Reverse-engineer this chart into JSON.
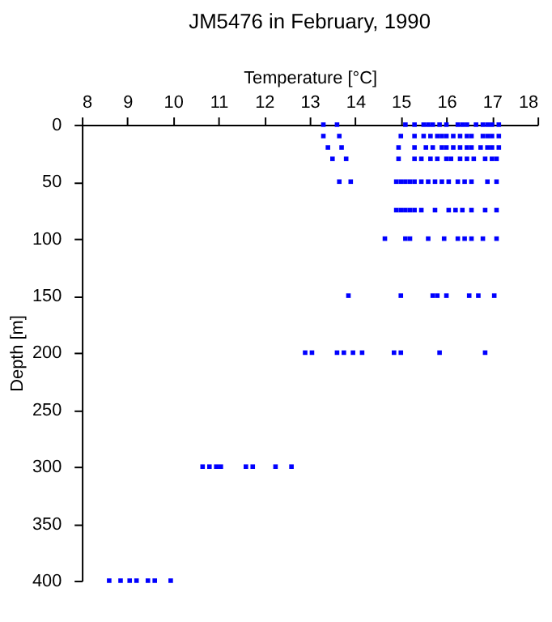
{
  "chart_data": {
    "type": "scatter",
    "title": "JM5476 in February, 1990",
    "xlabel": "Temperature [°C]",
    "ylabel": "Depth [m]",
    "xlim": [
      8,
      18
    ],
    "xticks": [
      8,
      9,
      10,
      11,
      12,
      13,
      14,
      15,
      16,
      17,
      18
    ],
    "ylim": [
      400,
      0
    ],
    "yticks": [
      0,
      50,
      100,
      150,
      200,
      250,
      300,
      350,
      400
    ],
    "grid": false,
    "marker": "square",
    "series": [
      {
        "color": "#0000ff",
        "x": [
          13.3,
          13.6,
          15.1,
          15.3,
          15.5,
          15.6,
          15.7,
          15.85,
          16.0,
          16.25,
          16.35,
          16.45,
          16.65,
          16.8,
          16.9,
          17.0,
          17.15,
          13.3,
          13.65,
          15.0,
          15.3,
          15.5,
          15.65,
          15.8,
          15.9,
          16.0,
          16.15,
          16.3,
          16.45,
          16.55,
          16.8,
          16.9,
          17.0,
          17.15,
          13.4,
          13.7,
          14.95,
          15.3,
          15.55,
          15.7,
          15.9,
          16.0,
          16.15,
          16.3,
          16.45,
          16.55,
          16.75,
          16.9,
          17.0,
          17.15,
          13.5,
          13.8,
          14.95,
          15.3,
          15.45,
          15.65,
          15.8,
          16.0,
          16.1,
          16.3,
          16.45,
          16.6,
          16.85,
          17.0,
          17.1,
          13.65,
          13.9,
          14.9,
          15.0,
          15.1,
          15.2,
          15.3,
          15.45,
          15.6,
          15.75,
          15.9,
          16.05,
          16.25,
          16.4,
          16.55,
          16.9,
          17.1,
          14.9,
          15.0,
          15.1,
          15.2,
          15.3,
          15.45,
          15.75,
          16.05,
          16.2,
          16.35,
          16.55,
          16.85,
          17.1,
          14.65,
          15.1,
          15.2,
          15.6,
          15.95,
          16.25,
          16.4,
          16.55,
          16.8,
          17.1,
          13.85,
          15.0,
          15.7,
          15.8,
          16.0,
          16.5,
          16.7,
          17.05,
          12.9,
          13.05,
          13.6,
          13.75,
          13.95,
          14.15,
          14.85,
          15.0,
          15.85,
          16.85,
          10.65,
          10.8,
          10.95,
          11.05,
          11.6,
          11.75,
          12.25,
          12.6,
          8.6,
          8.85,
          9.05,
          9.2,
          9.45,
          9.6,
          9.95
        ],
        "values": [
          0,
          0,
          0,
          0,
          0,
          0,
          0,
          0,
          0,
          0,
          0,
          0,
          0,
          0,
          0,
          0,
          0,
          10,
          10,
          10,
          10,
          10,
          10,
          10,
          10,
          10,
          10,
          10,
          10,
          10,
          10,
          10,
          10,
          10,
          20,
          20,
          20,
          20,
          20,
          20,
          20,
          20,
          20,
          20,
          20,
          20,
          20,
          20,
          20,
          20,
          30,
          30,
          30,
          30,
          30,
          30,
          30,
          30,
          30,
          30,
          30,
          30,
          30,
          30,
          30,
          50,
          50,
          50,
          50,
          50,
          50,
          50,
          50,
          50,
          50,
          50,
          50,
          50,
          50,
          50,
          50,
          50,
          75,
          75,
          75,
          75,
          75,
          75,
          75,
          75,
          75,
          75,
          75,
          75,
          75,
          100,
          100,
          100,
          100,
          100,
          100,
          100,
          100,
          100,
          100,
          150,
          150,
          150,
          150,
          150,
          150,
          150,
          150,
          200,
          200,
          200,
          200,
          200,
          200,
          200,
          200,
          200,
          200,
          300,
          300,
          300,
          300,
          300,
          300,
          300,
          300,
          400,
          400,
          400,
          400,
          400,
          400,
          400
        ]
      }
    ]
  }
}
